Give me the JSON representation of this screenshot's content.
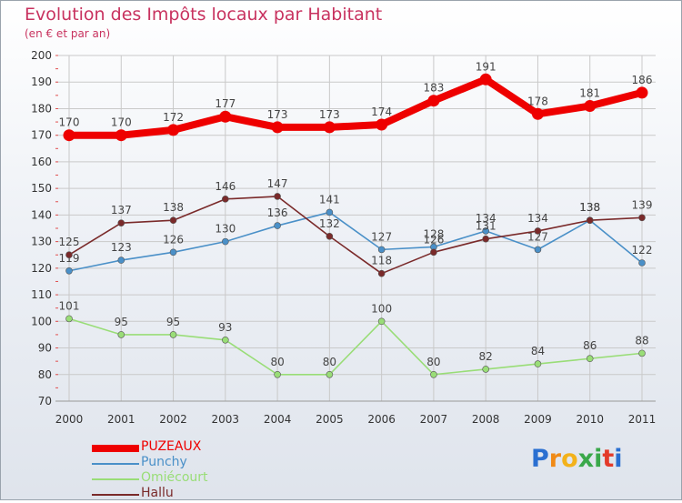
{
  "header": {
    "title": "Evolution des Impôts locaux par Habitant",
    "subtitle": "(en € et par an)"
  },
  "logo": {
    "letters": [
      "P",
      "r",
      "o",
      "x",
      "i",
      "t",
      "i"
    ],
    "colors": [
      "#2a6fd1",
      "#f08a17",
      "#f3b21a",
      "#3aa84a",
      "#3aa84a",
      "#e33b2a",
      "#2a6fd1"
    ]
  },
  "chart_data": {
    "type": "line",
    "x": [
      "2000",
      "2001",
      "2002",
      "2003",
      "2004",
      "2005",
      "2006",
      "2007",
      "2008",
      "2009",
      "2010",
      "2011"
    ],
    "ylim": [
      70,
      200
    ],
    "yticks": [
      "70",
      "80",
      "90",
      "100",
      "110",
      "120",
      "130",
      "140",
      "150",
      "160",
      "170",
      "180",
      "190",
      "200"
    ],
    "grid": true,
    "legend_position": "bottom-left",
    "series": [
      {
        "name": "PUZEAUX",
        "color": "#ee0000",
        "values": [
          170,
          170,
          172,
          177,
          173,
          173,
          174,
          183,
          191,
          178,
          181,
          186
        ],
        "labels": [
          "170",
          "170",
          "172",
          "177",
          "173",
          "173",
          "174",
          "183",
          "191",
          "178",
          "181",
          "186"
        ]
      },
      {
        "name": "Punchy",
        "color": "#4a90c8",
        "values": [
          119,
          123,
          126,
          130,
          136,
          141,
          127,
          128,
          134,
          127,
          138,
          122
        ],
        "labels": [
          "119",
          "123",
          "126",
          "130",
          "136",
          "141",
          "127",
          "128",
          "134",
          "127",
          "138",
          "122"
        ]
      },
      {
        "name": "Omiécourt",
        "color": "#99dd77",
        "values": [
          101,
          95,
          95,
          93,
          80,
          80,
          100,
          80,
          82,
          84,
          86,
          88
        ],
        "labels": [
          "101",
          "95",
          "95",
          "93",
          "80",
          "80",
          "100",
          "80",
          "82",
          "84",
          "86",
          "88"
        ]
      },
      {
        "name": "Hallu",
        "color": "#7a2a2a",
        "values": [
          125,
          137,
          138,
          146,
          147,
          132,
          118,
          126,
          131,
          134,
          138,
          139
        ],
        "labels": [
          "125",
          "137",
          "138",
          "146",
          "147",
          "132",
          "118",
          "126",
          "131",
          "134",
          "138",
          "139"
        ]
      }
    ]
  }
}
